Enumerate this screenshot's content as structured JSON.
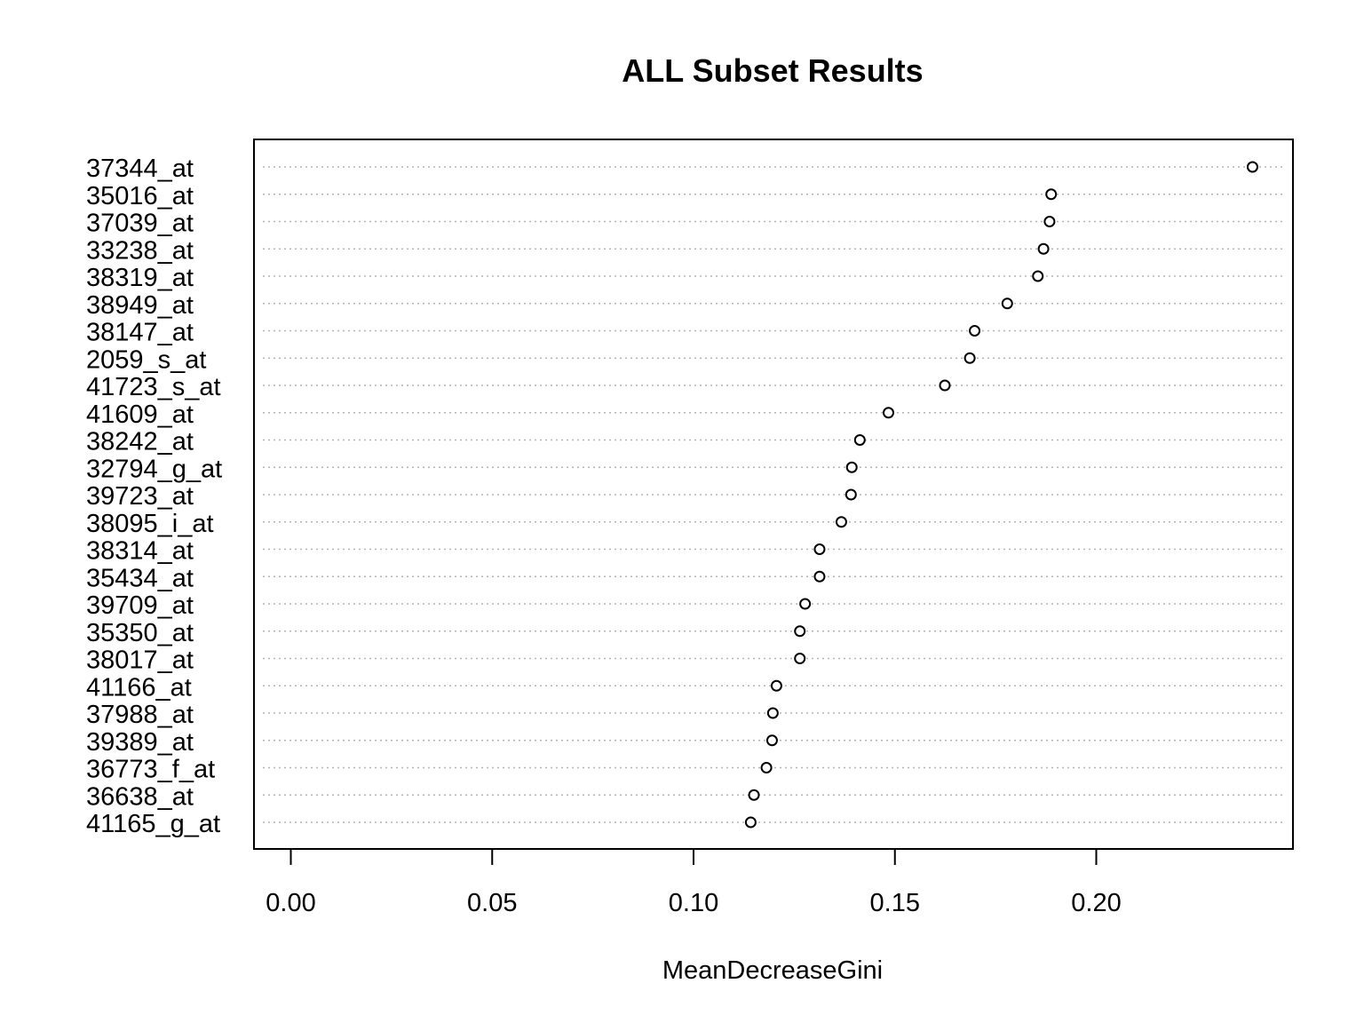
{
  "chart_data": {
    "type": "scatter",
    "title": "ALL Subset Results",
    "xlabel": "MeanDecreaseGini",
    "ylabel": "",
    "xlim": [
      -0.0094,
      0.2487
    ],
    "xticks": [
      "0.00",
      "0.05",
      "0.10",
      "0.15",
      "0.20"
    ],
    "xtick_values": [
      0,
      0.05,
      0.1,
      0.15,
      0.2
    ],
    "grid": "horizontal-dotted",
    "legend": "none",
    "categories": [
      "37344_at",
      "35016_at",
      "37039_at",
      "33238_at",
      "38319_at",
      "38949_at",
      "38147_at",
      "2059_s_at",
      "41723_s_at",
      "41609_at",
      "38242_at",
      "32794_g_at",
      "39723_at",
      "38095_i_at",
      "38314_at",
      "35434_at",
      "39709_at",
      "35350_at",
      "38017_at",
      "41166_at",
      "37988_at",
      "39389_at",
      "36773_f_at",
      "36638_at",
      "41165_g_at"
    ],
    "values": [
      0.2388,
      0.1888,
      0.1884,
      0.1869,
      0.1855,
      0.1779,
      0.1698,
      0.1686,
      0.1624,
      0.1484,
      0.1413,
      0.1393,
      0.1391,
      0.1367,
      0.1313,
      0.1313,
      0.1277,
      0.1264,
      0.1264,
      0.1206,
      0.1197,
      0.1195,
      0.1181,
      0.115,
      0.1142
    ]
  }
}
